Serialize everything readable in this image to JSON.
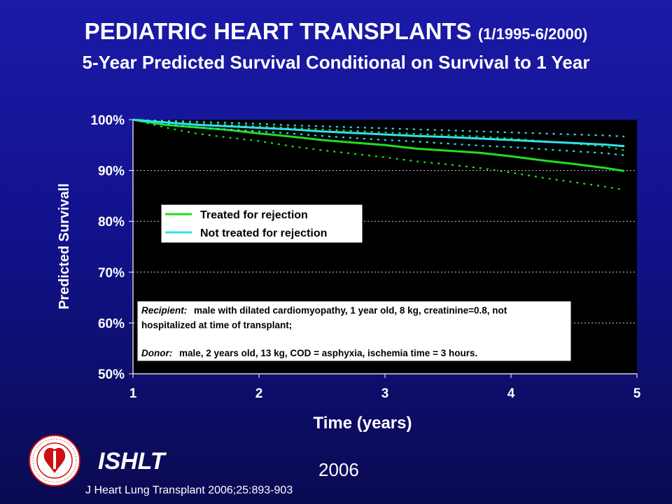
{
  "header": {
    "title": "PEDIATRIC HEART TRANSPLANTS",
    "title_range": "(1/1995-6/2000)",
    "subtitle": "5-Year Predicted Survival Conditional on Survival to 1 Year"
  },
  "footer": {
    "org": "ISHLT",
    "year": "2006",
    "citation": "J Heart Lung Transplant 2006;25:893-903"
  },
  "logo": {
    "icon": "ishlt-seal-icon",
    "ring_text": "INTERNATIONAL SOCIETY FOR HEART & LUNG TRANSPLANTATION"
  },
  "colors": {
    "background": "#14149a",
    "plot_area": "#000000",
    "treated": "#22dd22",
    "not_treated": "#33e0ee",
    "text": "#ffffff",
    "annotation_text": "#ffff00"
  },
  "chart_data": {
    "type": "line",
    "xlabel": "Time (years)",
    "ylabel": "Predicted Survivall",
    "xlim": [
      1,
      5
    ],
    "ylim": [
      0.5,
      1.0
    ],
    "x_ticks": [
      "1",
      "2",
      "3",
      "4",
      "5"
    ],
    "y_ticks": [
      "50%",
      "60%",
      "70%",
      "80%",
      "90%",
      "100%"
    ],
    "grid": "horizontal dotted",
    "legend_position": "left-middle",
    "x": [
      1.0,
      1.25,
      1.5,
      1.75,
      2.0,
      2.25,
      2.5,
      2.75,
      3.0,
      3.25,
      3.5,
      3.75,
      4.0,
      4.25,
      4.5,
      4.75,
      4.9
    ],
    "series": [
      {
        "name": "Treated for rejection",
        "style": "solid",
        "color": "#22dd22",
        "values": [
          1.0,
          0.99,
          0.985,
          0.98,
          0.973,
          0.967,
          0.96,
          0.955,
          0.95,
          0.943,
          0.939,
          0.935,
          0.928,
          0.92,
          0.913,
          0.905,
          0.899
        ],
        "ci_lower": [
          1.0,
          0.985,
          0.973,
          0.965,
          0.958,
          0.948,
          0.94,
          0.933,
          0.926,
          0.918,
          0.912,
          0.905,
          0.896,
          0.886,
          0.877,
          0.868,
          0.862
        ],
        "ci_upper": [
          1.0,
          0.996,
          0.992,
          0.99,
          0.987,
          0.984,
          0.981,
          0.978,
          0.975,
          0.972,
          0.97,
          0.967,
          0.963,
          0.958,
          0.953,
          0.947,
          0.94
        ]
      },
      {
        "name": "Not treated for rejection",
        "style": "solid",
        "color": "#33e0ee",
        "values": [
          1.0,
          0.995,
          0.99,
          0.987,
          0.984,
          0.981,
          0.977,
          0.974,
          0.971,
          0.968,
          0.966,
          0.963,
          0.96,
          0.957,
          0.954,
          0.951,
          0.948
        ],
        "ci_lower": [
          1.0,
          0.992,
          0.985,
          0.981,
          0.977,
          0.973,
          0.968,
          0.964,
          0.96,
          0.957,
          0.953,
          0.949,
          0.946,
          0.942,
          0.938,
          0.934,
          0.93
        ],
        "ci_upper": [
          1.0,
          0.998,
          0.996,
          0.994,
          0.992,
          0.989,
          0.987,
          0.985,
          0.983,
          0.981,
          0.979,
          0.977,
          0.975,
          0.973,
          0.971,
          0.969,
          0.967
        ]
      }
    ],
    "annotation": {
      "recipient_label": "Recipient:",
      "recipient_text_1": "male with dilated cardiomyopathy, 1 year old, 8 kg, creatinine=0.8, not",
      "recipient_text_2": "hospitalized at time of transplant;",
      "donor_label": "Donor:",
      "donor_text": "male, 2 years old, 13 kg, COD = asphyxia, ischemia time = 3 hours."
    }
  }
}
